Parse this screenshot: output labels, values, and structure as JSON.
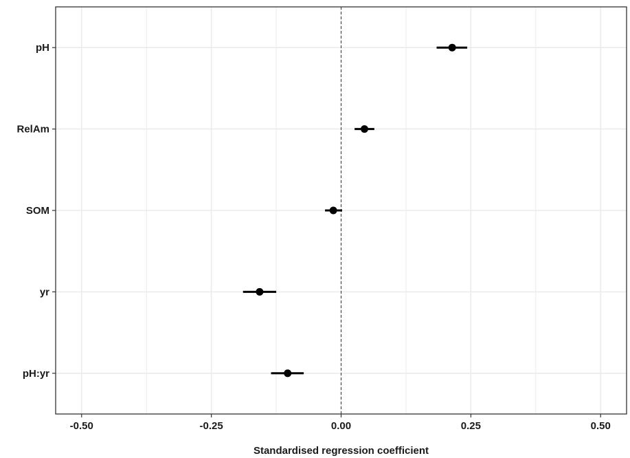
{
  "chart_data": {
    "type": "scatter",
    "title": "",
    "xlabel": "Standardised regression coefficient",
    "ylabel": "",
    "xlim": [
      -0.55,
      0.55
    ],
    "x_ticks": [
      -0.5,
      -0.25,
      0.0,
      0.25,
      0.5
    ],
    "x_tick_labels": [
      "-0.50",
      "-0.25",
      "0.00",
      "0.25",
      "0.50"
    ],
    "categories": [
      "pH",
      "RelAm",
      "SOM",
      "yr",
      "pH:yr"
    ],
    "points": [
      {
        "category": "pH",
        "estimate": 0.214,
        "lower": 0.184,
        "upper": 0.243
      },
      {
        "category": "RelAm",
        "estimate": 0.045,
        "lower": 0.026,
        "upper": 0.064
      },
      {
        "category": "SOM",
        "estimate": -0.015,
        "lower": -0.031,
        "upper": 0.002
      },
      {
        "category": "yr",
        "estimate": -0.157,
        "lower": -0.189,
        "upper": -0.125
      },
      {
        "category": "pH:yr",
        "estimate": -0.103,
        "lower": -0.135,
        "upper": -0.072
      }
    ],
    "reference_line": 0.0,
    "grid": true,
    "legend": "none",
    "colors": {
      "points": "#000000",
      "grid": "#ebebeb",
      "panel_border": "#333333"
    }
  }
}
